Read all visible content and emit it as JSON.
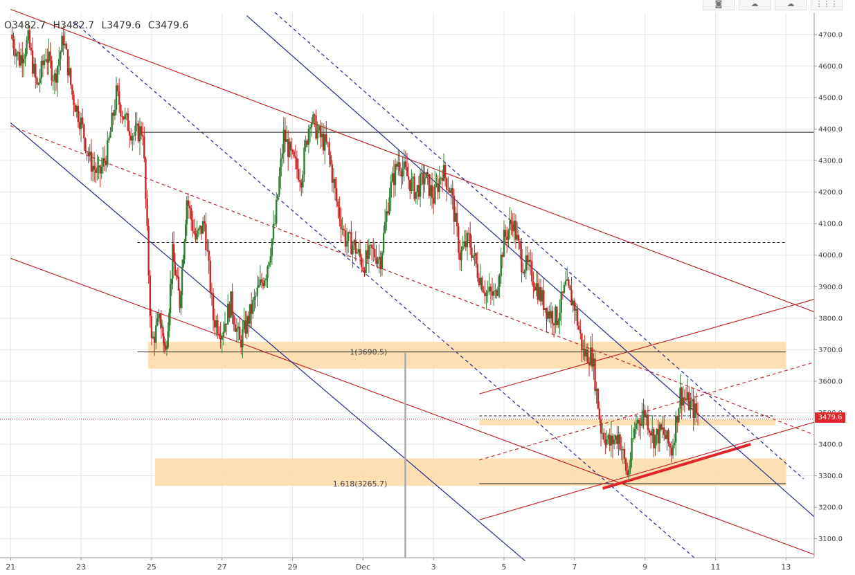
{
  "ohlc": {
    "open": "O3482.7",
    "high": "H3482.7",
    "low": "L3479.6",
    "close": "C3479.6"
  },
  "toolbar": [
    {
      "name": "camera-icon",
      "glyph": "◙"
    },
    {
      "name": "cloud-download-icon",
      "glyph": "☁"
    },
    {
      "name": "cloud-upload-icon",
      "glyph": "☁"
    },
    {
      "name": "more-icon",
      "glyph": "⋮⋮⋮"
    }
  ],
  "last_price_label": "3479.6",
  "chart_data": {
    "type": "candlestick",
    "y_ticks": [
      "3100.0",
      "3200.0",
      "3300.0",
      "3400.0",
      "3500.0",
      "3600.0",
      "3700.0",
      "3800.0",
      "3900.0",
      "4000.0",
      "4100.0",
      "4200.0",
      "4300.0",
      "4400.0",
      "4500.0",
      "4600.0",
      "4700.0"
    ],
    "x_ticks": [
      "21",
      "23",
      "25",
      "27",
      "29",
      "Dec",
      "3",
      "5",
      "7",
      "9",
      "11",
      "13"
    ],
    "ylim": [
      3040,
      4770
    ],
    "colors": {
      "up": "#2e7d32",
      "down": "#c62828",
      "red_line": "#c0282d",
      "blue_line": "#1f2c8f",
      "zone": "#fbd9a6",
      "grid": "#e6e6e6"
    },
    "price_path": [
      [
        0.0,
        4700
      ],
      [
        0.25,
        4620
      ],
      [
        0.5,
        4680
      ],
      [
        0.75,
        4530
      ],
      [
        1.0,
        4640
      ],
      [
        1.25,
        4560
      ],
      [
        1.5,
        4690
      ],
      [
        1.75,
        4510
      ],
      [
        2.0,
        4420
      ],
      [
        2.25,
        4300
      ],
      [
        2.5,
        4250
      ],
      [
        2.75,
        4330
      ],
      [
        3.0,
        4510
      ],
      [
        3.25,
        4430
      ],
      [
        3.5,
        4380
      ],
      [
        3.75,
        4400
      ],
      [
        4.0,
        3720
      ],
      [
        4.25,
        3800
      ],
      [
        4.4,
        3690
      ],
      [
        4.6,
        4000
      ],
      [
        4.8,
        3850
      ],
      [
        5.0,
        4180
      ],
      [
        5.25,
        4050
      ],
      [
        5.5,
        4100
      ],
      [
        5.75,
        3800
      ],
      [
        6.0,
        3760
      ],
      [
        6.25,
        3850
      ],
      [
        6.5,
        3720
      ],
      [
        6.75,
        3800
      ],
      [
        7.0,
        3880
      ],
      [
        7.25,
        3950
      ],
      [
        7.5,
        4100
      ],
      [
        7.75,
        4380
      ],
      [
        8.0,
        4300
      ],
      [
        8.25,
        4250
      ],
      [
        8.5,
        4440
      ],
      [
        8.75,
        4380
      ],
      [
        9.0,
        4340
      ],
      [
        9.25,
        4170
      ],
      [
        9.5,
        4050
      ],
      [
        9.75,
        4030
      ],
      [
        10.0,
        3970
      ],
      [
        10.25,
        4010
      ],
      [
        10.5,
        3990
      ],
      [
        10.75,
        4200
      ],
      [
        11.0,
        4300
      ],
      [
        11.25,
        4250
      ],
      [
        11.5,
        4200
      ],
      [
        11.75,
        4250
      ],
      [
        12.0,
        4180
      ],
      [
        12.25,
        4270
      ],
      [
        12.5,
        4200
      ],
      [
        12.75,
        4000
      ],
      [
        13.0,
        4050
      ],
      [
        13.25,
        3950
      ],
      [
        13.5,
        3880
      ],
      [
        13.75,
        3870
      ],
      [
        14.0,
        4050
      ],
      [
        14.25,
        4110
      ],
      [
        14.5,
        3980
      ],
      [
        14.75,
        3950
      ],
      [
        15.0,
        3880
      ],
      [
        15.25,
        3820
      ],
      [
        15.5,
        3800
      ],
      [
        15.75,
        3900
      ],
      [
        16.0,
        3840
      ],
      [
        16.25,
        3690
      ],
      [
        16.5,
        3680
      ],
      [
        16.75,
        3450
      ],
      [
        17.0,
        3400
      ],
      [
        17.25,
        3430
      ],
      [
        17.5,
        3300
      ],
      [
        17.75,
        3470
      ],
      [
        18.0,
        3500
      ],
      [
        18.25,
        3420
      ],
      [
        18.5,
        3440
      ],
      [
        18.75,
        3380
      ],
      [
        19.0,
        3560
      ],
      [
        19.25,
        3530
      ],
      [
        19.5,
        3490
      ]
    ],
    "horizontal_lines": [
      {
        "y": 4390,
        "style": "solid",
        "color": "#222"
      },
      {
        "y": 4040,
        "style": "dashed",
        "color": "#222"
      },
      {
        "y": 3693,
        "style": "solid",
        "color": "#222"
      },
      {
        "y": 3275,
        "style": "solid",
        "color": "#222"
      },
      {
        "y": 3490,
        "style": "dashed",
        "color": "#222"
      },
      {
        "y": 3479.6,
        "style": "dotted",
        "color": "#c62828"
      }
    ],
    "zones": [
      {
        "x0": 3.9,
        "x1": 22.0,
        "y0": 3640,
        "y1": 3725
      },
      {
        "x0": 4.1,
        "x1": 22.0,
        "y0": 3268,
        "y1": 3355
      },
      {
        "x0": 13.3,
        "x1": 21.7,
        "y0": 3460,
        "y1": 3478
      }
    ],
    "fib_labels": [
      {
        "label": "1(3690.5)",
        "x": 10.0,
        "y": 3693
      },
      {
        "label": "1.618(3265.7)",
        "x": 10.0,
        "y": 3275
      }
    ],
    "trend_lines": [
      {
        "color": "red",
        "style": "solid",
        "p1": [
          0.0,
          4780
        ],
        "p2": [
          23.0,
          3820
        ]
      },
      {
        "color": "red",
        "style": "solid",
        "p1": [
          0.0,
          3990
        ],
        "p2": [
          23.0,
          3050
        ]
      },
      {
        "color": "red",
        "style": "dashed",
        "p1": [
          0.0,
          4410
        ],
        "p2": [
          23.0,
          3430
        ]
      },
      {
        "color": "red",
        "style": "solid",
        "p1": [
          13.3,
          3560
        ],
        "p2": [
          23.0,
          3860
        ]
      },
      {
        "color": "red",
        "style": "dashed",
        "p1": [
          13.3,
          3350
        ],
        "p2": [
          23.0,
          3660
        ]
      },
      {
        "color": "red",
        "style": "solid",
        "p1": [
          13.3,
          3160
        ],
        "p2": [
          23.0,
          3470
        ]
      },
      {
        "color": "red",
        "style": "thick",
        "p1": [
          16.8,
          3260
        ],
        "p2": [
          21.0,
          3400
        ]
      },
      {
        "color": "blue",
        "style": "solid",
        "p1": [
          0.0,
          4420
        ],
        "p2": [
          14.6,
          3030
        ]
      },
      {
        "color": "blue",
        "style": "dashed",
        "p1": [
          1.8,
          4740
        ],
        "p2": [
          19.4,
          3040
        ]
      },
      {
        "color": "blue",
        "style": "solid",
        "p1": [
          6.7,
          4760
        ],
        "p2": [
          23.0,
          3170
        ]
      },
      {
        "color": "blue",
        "style": "dashed",
        "p1": [
          7.5,
          4770
        ],
        "p2": [
          22.5,
          3290
        ]
      }
    ],
    "vertical_marker": {
      "x": 11.2,
      "y0": 3690,
      "y1": 3040
    }
  }
}
